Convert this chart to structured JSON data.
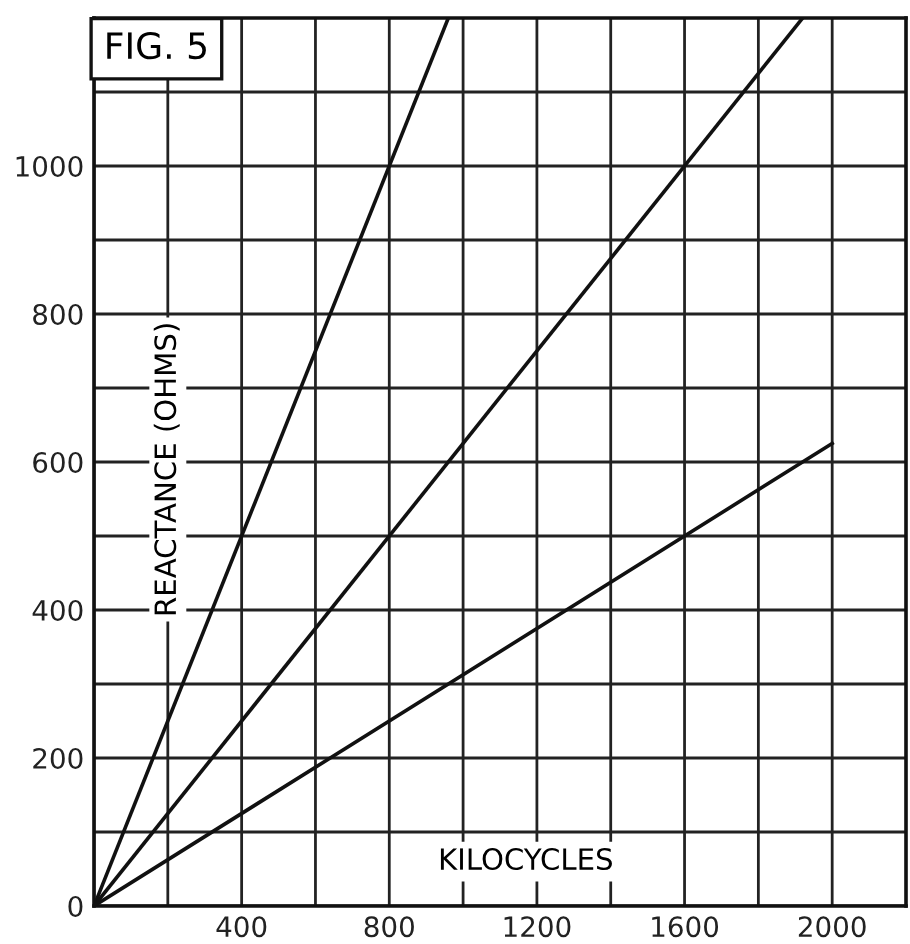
{
  "chart_data": {
    "type": "line",
    "title": "FIG. 5",
    "xlabel": "KILOCYCLES",
    "ylabel": "REACTANCE (OHMS)",
    "series": [
      {
        "color": "#111111",
        "x": [
          0,
          960
        ],
        "values": [
          0,
          1200
        ]
      },
      {
        "color": "#111111",
        "x": [
          0,
          1920
        ],
        "values": [
          0,
          1200
        ]
      },
      {
        "color": "#111111",
        "x": [
          0,
          2000
        ],
        "values": [
          0,
          625
        ]
      }
    ],
    "xlim": [
      0,
      2200
    ],
    "ylim": [
      0,
      1200
    ],
    "xticks": [
      {
        "value": 0,
        "label": null
      },
      {
        "value": 200,
        "label": null
      },
      400,
      {
        "value": 600,
        "label": null
      },
      800,
      {
        "value": 1000,
        "label": null
      },
      1200,
      {
        "value": 1400,
        "label": null
      },
      1600,
      {
        "value": 1800,
        "label": null
      },
      2000
    ],
    "yticks": [
      0,
      {
        "value": 100,
        "label": null
      },
      200,
      {
        "value": 300,
        "label": null
      },
      400,
      {
        "value": 500,
        "label": null
      },
      600,
      {
        "value": 700,
        "label": null
      },
      800,
      {
        "value": 900,
        "label": null
      },
      1000,
      {
        "value": 1100,
        "label": null
      }
    ],
    "grid": true,
    "marker": "none",
    "line_style": "solid"
  }
}
